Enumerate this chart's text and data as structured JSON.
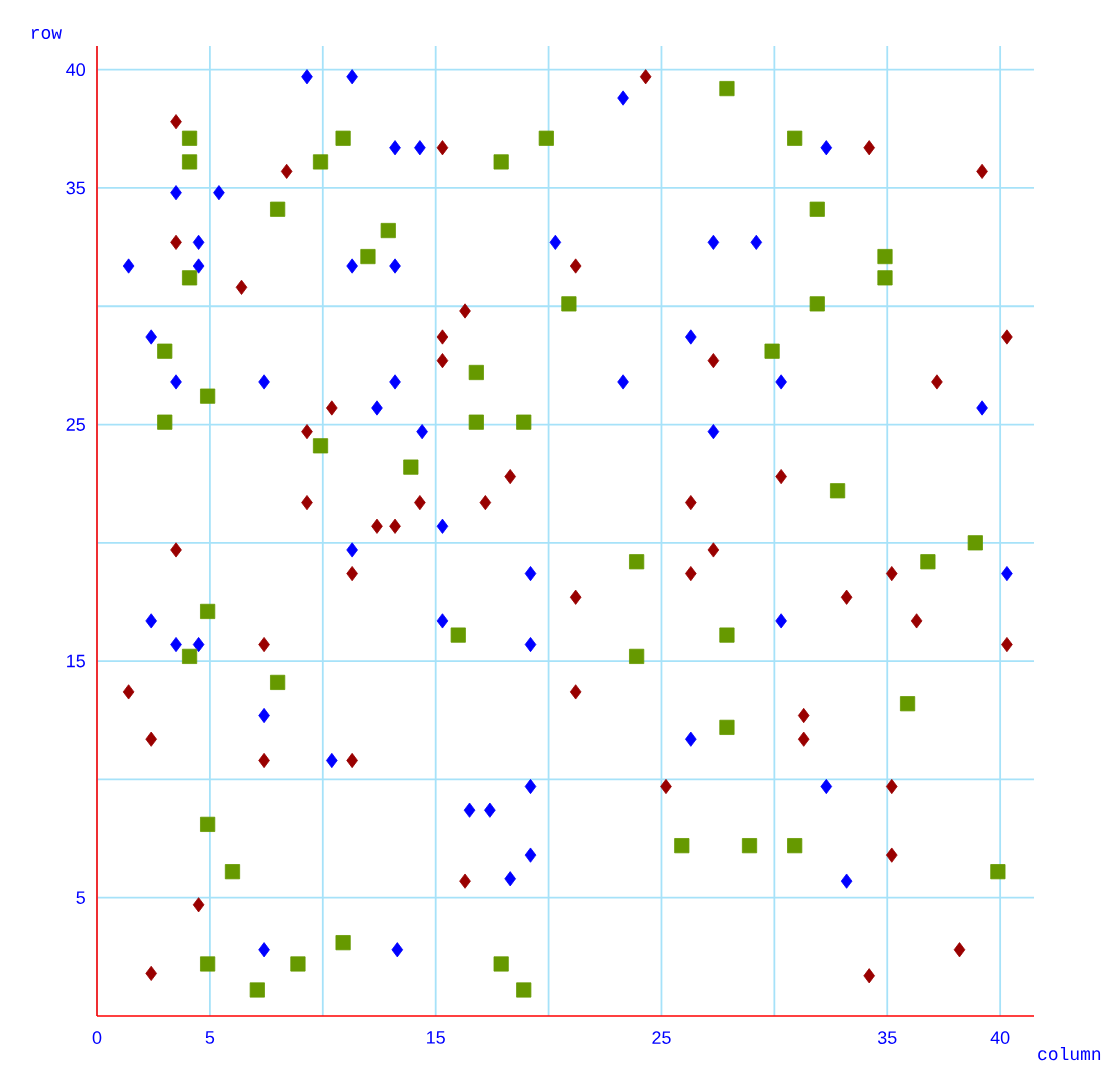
{
  "chart_data": {
    "type": "scatter",
    "xlabel": "column",
    "ylabel": "row",
    "xlim": [
      0,
      41.5
    ],
    "ylim": [
      0,
      41
    ],
    "xticks": [
      0,
      5,
      {
        "value": 10,
        "label": null
      },
      15,
      {
        "value": 20,
        "label": null
      },
      25,
      {
        "value": 30,
        "label": null
      },
      35,
      40
    ],
    "yticks": [
      5,
      {
        "value": 10,
        "label": null
      },
      15,
      {
        "value": 20,
        "label": null
      },
      25,
      {
        "value": 30,
        "label": null
      },
      35,
      40
    ],
    "grid": true,
    "series": [
      {
        "color": "#0000ff",
        "marker": "diamond",
        "x": [
          9.3,
          11.3,
          13.2,
          14.3,
          3.5,
          5.4,
          4.5,
          1.4,
          4.5,
          11.3,
          13.2,
          20.3,
          2.4,
          3.5,
          7.4,
          13.2,
          12.4,
          14.4,
          15.3,
          23.3,
          32.3,
          27.3,
          29.2,
          26.3,
          23.3,
          30.3,
          39.2,
          27.3,
          11.3,
          19.2,
          2.4,
          3.5,
          4.5,
          15.3,
          19.2,
          7.4,
          10.4,
          19.2,
          16.5,
          17.4,
          19.2,
          18.3,
          7.4,
          13.3,
          40.3,
          30.3,
          26.3,
          32.3,
          33.2
        ],
        "values": [
          39.7,
          39.7,
          36.7,
          36.7,
          34.8,
          34.8,
          32.7,
          31.7,
          31.7,
          31.7,
          31.7,
          32.7,
          28.7,
          26.8,
          26.8,
          26.8,
          25.7,
          24.7,
          20.7,
          38.8,
          36.7,
          32.7,
          32.7,
          28.7,
          26.8,
          26.8,
          25.7,
          24.7,
          19.7,
          18.7,
          16.7,
          15.7,
          15.7,
          16.7,
          15.7,
          12.7,
          10.8,
          9.7,
          8.7,
          8.7,
          6.8,
          5.8,
          2.8,
          2.8,
          18.7,
          16.7,
          11.7,
          9.7,
          5.7
        ]
      },
      {
        "color": "#669900",
        "marker": "square",
        "x": [
          4.1,
          4.1,
          10.9,
          9.9,
          19.9,
          17.9,
          8.0,
          12.9,
          12.0,
          4.1,
          20.9,
          3.0,
          16.8,
          4.9,
          3.0,
          16.8,
          18.9,
          9.9,
          13.9,
          27.9,
          30.9,
          31.9,
          34.9,
          34.9,
          31.9,
          29.9,
          32.8,
          38.9,
          4.9,
          4.1,
          16.0,
          8.0,
          4.9,
          6.0,
          10.9,
          4.9,
          8.9,
          7.1,
          17.9,
          18.9,
          23.9,
          36.8,
          27.9,
          23.9,
          35.9,
          27.9,
          25.9,
          28.9,
          30.9,
          39.9
        ],
        "values": [
          37.1,
          36.1,
          37.1,
          36.1,
          37.1,
          36.1,
          34.1,
          33.2,
          32.1,
          31.2,
          30.1,
          28.1,
          27.2,
          26.2,
          25.1,
          25.1,
          25.1,
          24.1,
          23.2,
          39.2,
          37.1,
          34.1,
          32.1,
          31.2,
          30.1,
          28.1,
          22.2,
          20.0,
          17.1,
          15.2,
          16.1,
          14.1,
          8.1,
          6.1,
          3.1,
          2.2,
          2.2,
          1.1,
          2.2,
          1.1,
          19.2,
          19.2,
          16.1,
          15.2,
          13.2,
          12.2,
          7.2,
          7.2,
          7.2,
          6.1
        ]
      },
      {
        "color": "#990000",
        "marker": "diamond",
        "x": [
          3.5,
          15.3,
          8.4,
          3.5,
          6.4,
          16.3,
          15.3,
          15.3,
          10.4,
          9.3,
          18.3,
          9.3,
          14.3,
          17.2,
          12.4,
          13.2,
          24.3,
          34.2,
          39.2,
          21.2,
          40.3,
          27.3,
          37.2,
          30.3,
          26.3,
          3.5,
          11.3,
          7.4,
          1.4,
          2.4,
          7.4,
          11.3,
          4.5,
          2.4,
          16.3,
          27.3,
          26.3,
          21.2,
          33.2,
          35.2,
          36.3,
          40.3,
          21.2,
          31.3,
          31.3,
          25.2,
          35.2,
          35.2,
          38.2,
          34.2
        ],
        "values": [
          37.8,
          36.7,
          35.7,
          32.7,
          30.8,
          29.8,
          28.7,
          27.7,
          25.7,
          24.7,
          22.8,
          21.7,
          21.7,
          21.7,
          20.7,
          20.7,
          39.7,
          36.7,
          35.7,
          31.7,
          28.7,
          27.7,
          26.8,
          22.8,
          21.7,
          19.7,
          18.7,
          15.7,
          13.7,
          11.7,
          10.8,
          10.8,
          4.7,
          1.8,
          5.7,
          19.7,
          18.7,
          17.7,
          17.7,
          18.7,
          16.7,
          15.7,
          13.7,
          12.7,
          11.7,
          9.7,
          9.7,
          6.8,
          2.8,
          1.7
        ]
      }
    ]
  }
}
